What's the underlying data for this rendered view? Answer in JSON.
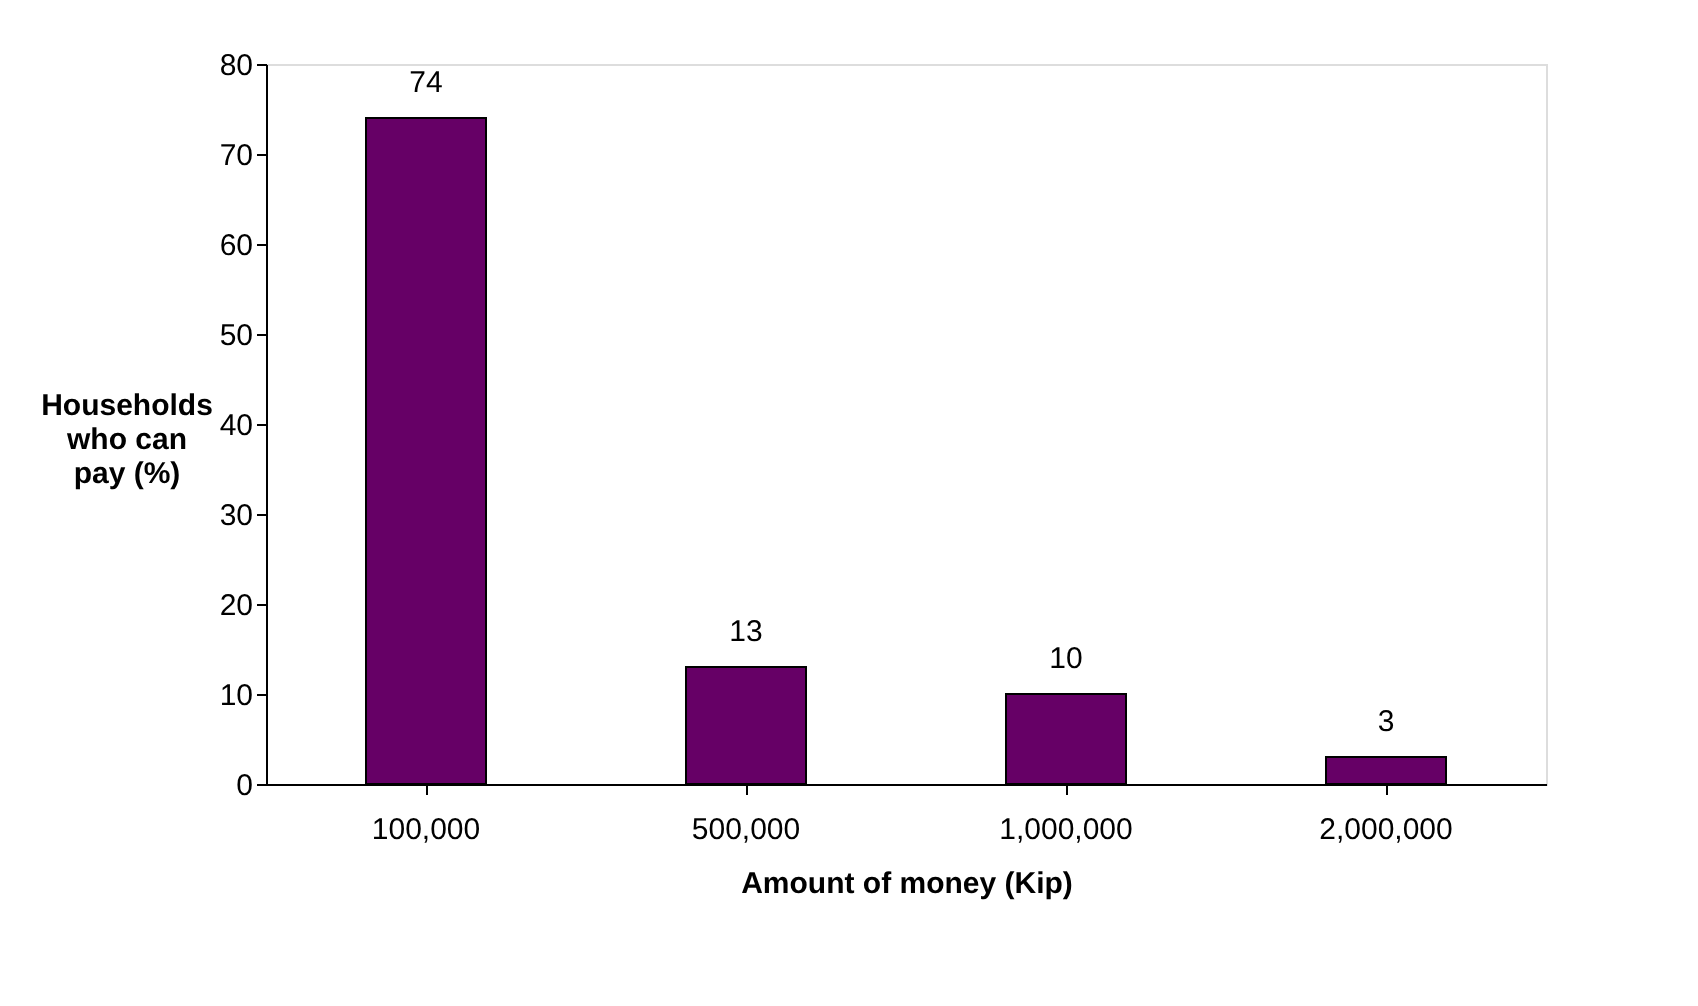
{
  "chart_data": {
    "type": "bar",
    "xlabel": "Amount of money (Kip)",
    "ylabel": "Households who can pay (%)",
    "categories": [
      "100,000",
      "500,000",
      "1,000,000",
      "2,000,000"
    ],
    "values": [
      74,
      13,
      10,
      3
    ],
    "color": "#660066",
    "ylim": [
      0,
      80
    ],
    "yticks": [
      0,
      10,
      20,
      30,
      40,
      50,
      60,
      70,
      80
    ],
    "grid": false,
    "data_labels": true
  }
}
